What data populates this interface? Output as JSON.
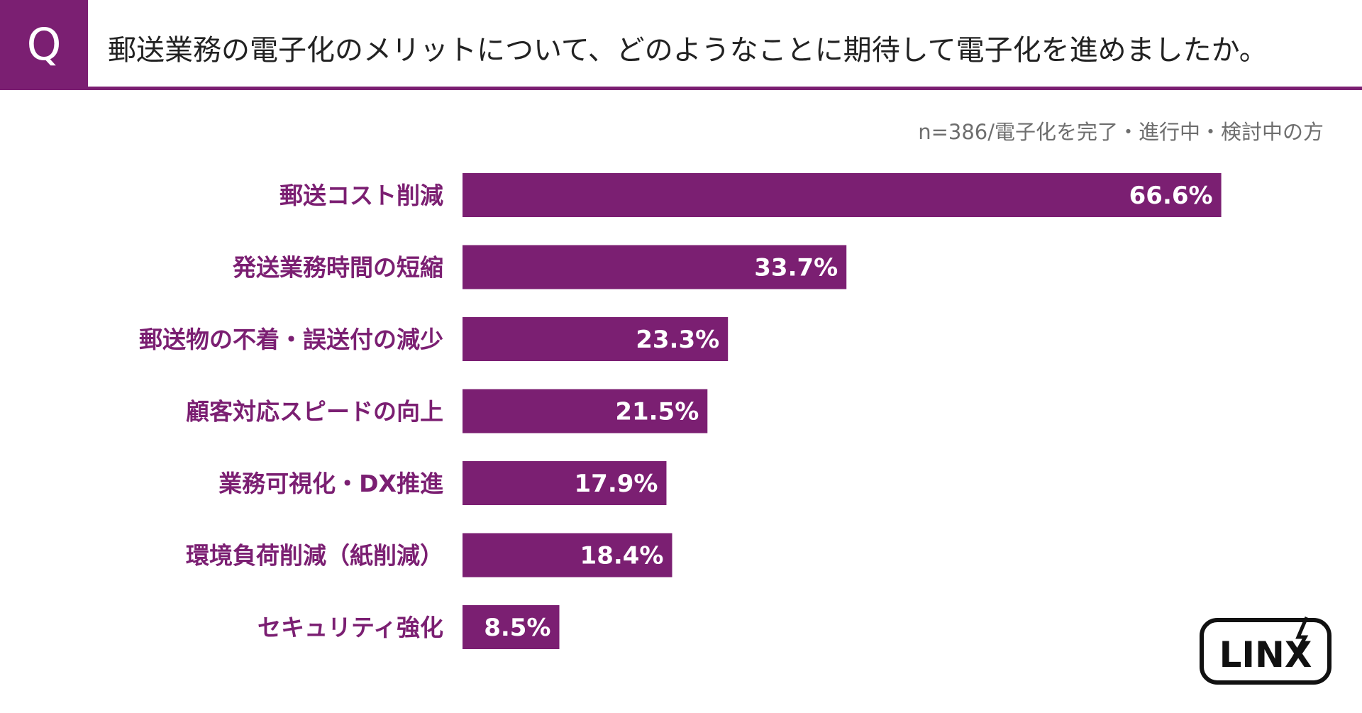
{
  "header": {
    "q_mark": "Q",
    "question": "郵送業務の電子化のメリットについて、どのようなことに期待して電子化を進めましたか。"
  },
  "note": "n=386/電子化を完了・進行中・検討中の方",
  "logo": {
    "text": "LINX"
  },
  "colors": {
    "accent": "#7b1f72",
    "bar": "#7b1f72",
    "label": "#7b1f72",
    "note": "#6e6e6e"
  },
  "chart_data": {
    "type": "bar",
    "orientation": "horizontal",
    "categories": [
      "郵送コスト削減",
      "発送業務時間の短縮",
      "郵送物の不着・誤送付の減少",
      "顧客対応スピードの向上",
      "業務可視化・DX推進",
      "環境負荷削減（紙削減）",
      "セキュリティ強化"
    ],
    "values": [
      66.6,
      33.7,
      23.3,
      21.5,
      17.9,
      18.4,
      8.5
    ],
    "value_labels": [
      "66.6%",
      "33.7%",
      "23.3%",
      "21.5%",
      "17.9%",
      "18.4%",
      "8.5%"
    ],
    "xlim": [
      0,
      100
    ],
    "grid": false,
    "legend": "none"
  }
}
